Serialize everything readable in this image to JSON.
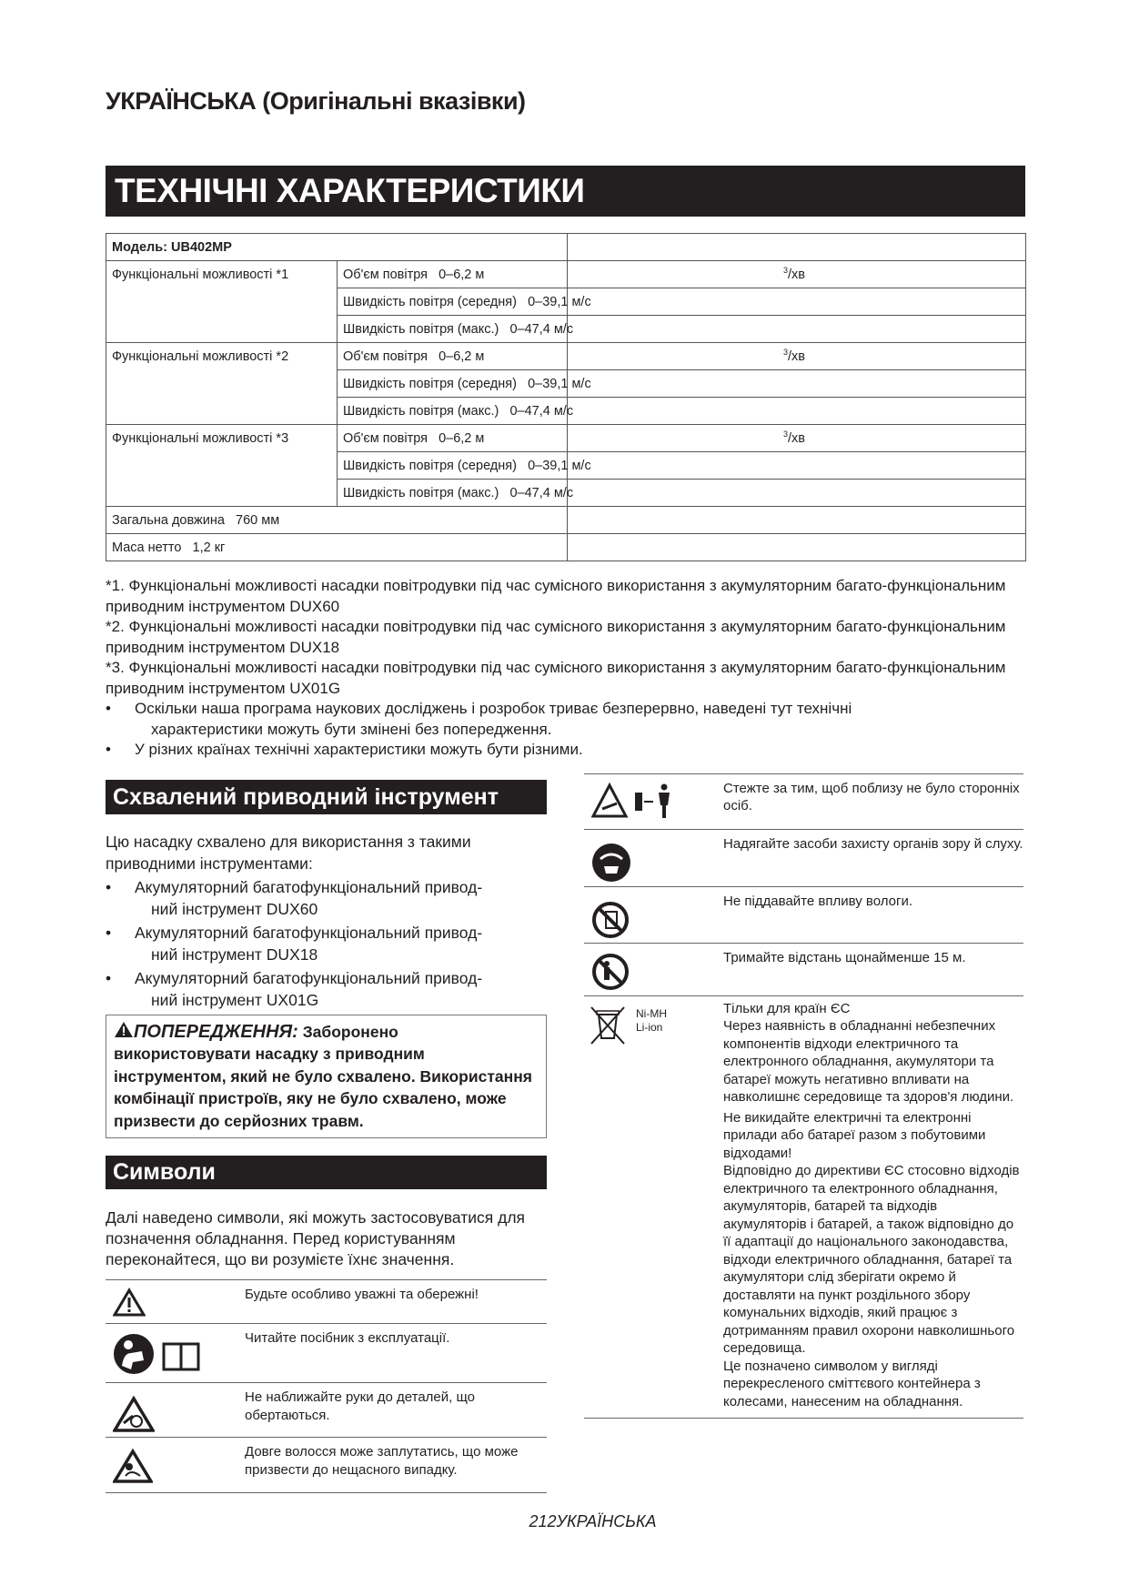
{
  "header": {
    "title": "УКРАЇНСЬКА (Оригінальні вказівки)"
  },
  "specs": {
    "title": "ТЕХНІЧНІ ХАРАКТЕРИСТИКИ",
    "model": "Модель: UB402MP",
    "groups": [
      {
        "label": "Функціональні можливості *1",
        "rows": [
          {
            "name": "Об'єм повітря",
            "value": "0–6,2 м",
            "unit_sup": "3",
            "unit": "/хв"
          },
          {
            "name": "Швидкість повітря (середня)",
            "value": "0–39,1 м/с"
          },
          {
            "name": "Швидкість повітря (макс.)",
            "value": "0–47,4 м/с"
          }
        ]
      },
      {
        "label": "Функціональні можливості *2",
        "rows": [
          {
            "name": "Об'єм повітря",
            "value": "0–6,2 м",
            "unit_sup": "3",
            "unit": "/хв"
          },
          {
            "name": "Швидкість повітря (середня)",
            "value": "0–39,1 м/с"
          },
          {
            "name": "Швидкість повітря (макс.)",
            "value": "0–47,4 м/с"
          }
        ]
      },
      {
        "label": "Функціональні можливості *3",
        "rows": [
          {
            "name": "Об'єм повітря",
            "value": "0–6,2 м",
            "unit_sup": "3",
            "unit": "/хв"
          },
          {
            "name": "Швидкість повітря (середня)",
            "value": "0–39,1 м/с"
          },
          {
            "name": "Швидкість повітря (макс.)",
            "value": "0–47,4 м/с"
          }
        ]
      }
    ],
    "length": {
      "name": "Загальна довжина",
      "value": "760 мм"
    },
    "weight": {
      "name": "Маса нетто",
      "value": "1,2 кг"
    },
    "footnotes": [
      "*1. Функціональні можливості насадки повітродувки під час сумісного використання з акумуляторним багато-функціональним приводним інструментом DUX60",
      "*2. Функціональні можливості насадки повітродувки під час сумісного використання з акумуляторним багато-функціональним приводним інструментом DUX18",
      "*3. Функціональні можливості насадки повітродувки під час сумісного використання з акумуляторним багато-функціональним приводним інструментом UX01G"
    ],
    "notes": [
      {
        "a": "Оскільки наша програма наукових досліджень і розробок триває безперервно, наведені тут технічні",
        "b": "характеристики можуть бути змінені без попередження."
      },
      {
        "a": "У різних країнах технічні характеристики можуть бути різними.",
        "b": ""
      }
    ]
  },
  "approved": {
    "title": "Схвалений приводний інструмент",
    "intro": "Цю насадку схвалено для використання з такими приводними інструментами:",
    "items": [
      {
        "a": "Акумуляторний багатофункціональний привод-",
        "b": "ний інструмент DUX60"
      },
      {
        "a": "Акумуляторний багатофункціональний привод-",
        "b": "ний інструмент DUX18"
      },
      {
        "a": "Акумуляторний багатофункціональний привод-",
        "b": "ний інструмент UX01G"
      }
    ],
    "warning_label": "ПОПЕРЕДЖЕННЯ:",
    "warning_text": "Заборонено використовувати насадку з приводним інструментом, який не було схвалено. Використання комбінації пристроїв, яку не було схвалено, може призвести до серйозних травм."
  },
  "symbols": {
    "title": "Символи",
    "intro": "Далі наведено символи, які можуть застосовуватися для позначення обладнання. Перед користуванням переконайтеся, що ви розумієте їхнє значення.",
    "left": [
      {
        "icon": "warning-triangle-icon",
        "text": "Будьте особливо уважні та обережні!"
      },
      {
        "icon": "read-manual-icon",
        "text": "Читайте посібник з експлуатації."
      },
      {
        "icon": "rotating-parts-icon",
        "text": "Не наближайте руки до деталей, що обертаються."
      },
      {
        "icon": "long-hair-icon",
        "text": "Довге волосся може заплутатись, що може призвести до нещасного випадку."
      }
    ],
    "right": [
      {
        "icon": "bystander-icon",
        "text": "Стежте за тим, щоб поблизу не було сторонніх осіб."
      },
      {
        "icon": "eye-ear-protection-icon",
        "text": "Надягайте засоби захисту органів зору й слуху."
      },
      {
        "icon": "no-moisture-icon",
        "text": "Не піддавайте впливу вологи."
      },
      {
        "icon": "keep-distance-icon",
        "text": "Тримайте відстань щонайменше 15 м."
      }
    ],
    "eu": {
      "battery_labels": [
        "Ni-MH",
        "Li-ion"
      ],
      "heading": "Тільки для країн ЄС",
      "p1": "Через наявність в обладнанні небезпечних компонентів відходи електричного та електронного обладнання, акумулятори та батареї можуть негативно впливати на навколишнє середовище та здоров'я людини.",
      "p2": "Не викидайте електричні та електронні прилади або батареї разом з побутовими відходами!",
      "p3": "Відповідно до директиви ЄС стосовно відходів електричного та електронного обладнання, акумуляторів, батарей та відходів акумуляторів і батарей, а також відповідно до її адаптації до національного законодавства, відходи електричного обладнання, батареї та акумулятори слід зберігати окремо й доставляти на пункт роздільного збору комунальних відходів, який працює з дотриманням правил охорони навколишнього середовища.",
      "p4": "Це позначено символом у вигляді перекресленого сміттєвого контейнера з колесами, нанесеним на обладнання."
    }
  },
  "footer": {
    "page": "212",
    "lang": "УКРАЇНСЬКА"
  }
}
